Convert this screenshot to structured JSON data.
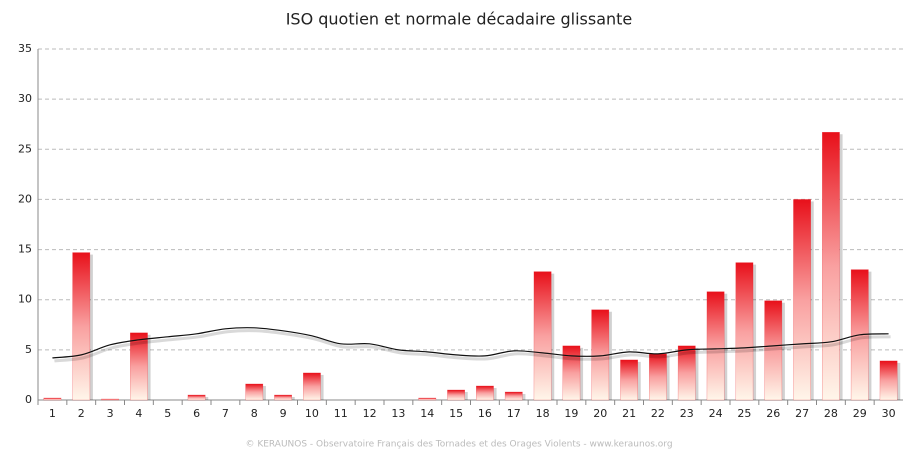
{
  "chart_data": {
    "type": "bar",
    "title": "ISO quotien et normale décadaire glissante",
    "footer": "© KERAUNOS - Observatoire Français des Tornades et des Orages Violents - www.keraunos.org",
    "categories": [
      "1",
      "2",
      "3",
      "4",
      "5",
      "6",
      "7",
      "8",
      "9",
      "10",
      "11",
      "12",
      "13",
      "14",
      "15",
      "16",
      "17",
      "18",
      "19",
      "20",
      "21",
      "22",
      "23",
      "24",
      "25",
      "26",
      "27",
      "28",
      "29",
      "30"
    ],
    "series": [
      {
        "type": "bar",
        "color": "#e8101a",
        "values": [
          0.2,
          14.7,
          0.1,
          6.7,
          0,
          0.5,
          0,
          1.6,
          0.5,
          2.7,
          0,
          0,
          0,
          0.2,
          1.0,
          1.4,
          0.8,
          12.8,
          5.4,
          9.0,
          4.0,
          4.6,
          5.4,
          10.8,
          13.7,
          9.9,
          20.0,
          26.7,
          13.0,
          3.9
        ]
      },
      {
        "type": "line",
        "color": "#111111",
        "values": [
          4.2,
          4.5,
          5.5,
          6.0,
          6.3,
          6.6,
          7.1,
          7.2,
          6.9,
          6.4,
          5.6,
          5.6,
          5.0,
          4.8,
          4.5,
          4.4,
          4.9,
          4.7,
          4.4,
          4.4,
          4.8,
          4.6,
          5.0,
          5.1,
          5.2,
          5.4,
          5.6,
          5.8,
          6.5,
          6.6
        ]
      }
    ],
    "ylim": [
      0,
      35
    ],
    "yticks": [
      0,
      5,
      10,
      15,
      20,
      25,
      30,
      35
    ],
    "grid": true
  }
}
